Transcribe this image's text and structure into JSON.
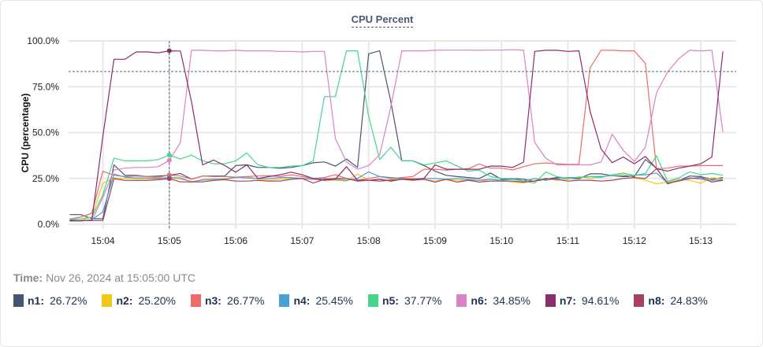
{
  "chart_data": {
    "type": "line",
    "title": "CPU Percent",
    "xlabel": "",
    "ylabel": "CPU (percentage)",
    "ylim": [
      0,
      100
    ],
    "y_ticks": [
      "0.0%",
      "25.0%",
      "50.0%",
      "75.0%",
      "100.0%"
    ],
    "y_tick_values": [
      0,
      25,
      50,
      75,
      100
    ],
    "x_range": [
      "15:03:29",
      "15:13:32"
    ],
    "x_ticks": [
      "15:04",
      "15:05",
      "15:06",
      "15:07",
      "15:08",
      "15:09",
      "15:10",
      "15:11",
      "15:12",
      "15:13"
    ],
    "grid": true,
    "reference_line": {
      "value": 83.3,
      "style": "dashed",
      "color": "#4f6b80"
    },
    "crosshair_time": "15:05:00",
    "x": [
      "15:03:30",
      "15:03:40",
      "15:03:50",
      "15:04:00",
      "15:04:10",
      "15:04:20",
      "15:04:30",
      "15:04:40",
      "15:04:50",
      "15:05:00",
      "15:05:10",
      "15:05:20",
      "15:05:30",
      "15:05:40",
      "15:05:50",
      "15:06:00",
      "15:06:10",
      "15:06:20",
      "15:06:30",
      "15:06:40",
      "15:06:50",
      "15:07:00",
      "15:07:10",
      "15:07:20",
      "15:07:30",
      "15:07:40",
      "15:07:50",
      "15:08:00",
      "15:08:10",
      "15:08:20",
      "15:08:30",
      "15:08:40",
      "15:08:50",
      "15:09:00",
      "15:09:10",
      "15:09:20",
      "15:09:30",
      "15:09:40",
      "15:09:50",
      "15:10:00",
      "15:10:10",
      "15:10:20",
      "15:10:30",
      "15:10:40",
      "15:10:50",
      "15:11:00",
      "15:11:10",
      "15:11:20",
      "15:11:30",
      "15:11:40",
      "15:11:50",
      "15:12:00",
      "15:12:10",
      "15:12:20",
      "15:12:30",
      "15:12:40",
      "15:12:50",
      "15:13:00",
      "15:13:10",
      "15:13:20"
    ],
    "series": [
      {
        "name": "n1",
        "color": "#46566f",
        "values": [
          5.3,
          5.3,
          3,
          3,
          32.4,
          26.7,
          26.7,
          26,
          26.3,
          26.72,
          27.7,
          24.6,
          26.3,
          26.3,
          26.3,
          32,
          32.4,
          31,
          31,
          30.5,
          31,
          32,
          33.5,
          34,
          31.7,
          35.6,
          31,
          93,
          94.6,
          67,
          34.6,
          34.6,
          32,
          29,
          26.7,
          26,
          25.5,
          25,
          28,
          24.5,
          25,
          24.5,
          23.5,
          24.5,
          25.5,
          25,
          24.8,
          27.5,
          27.5,
          26.5,
          26,
          26,
          35.3,
          30.6,
          22,
          23.9,
          26.3,
          26,
          24.5,
          25.5
        ]
      },
      {
        "name": "n2",
        "color": "#f5c518",
        "values": [
          2,
          2,
          3.9,
          22.4,
          25.3,
          24.9,
          24.6,
          24.6,
          24.6,
          25.2,
          24.6,
          23.4,
          23.9,
          24.3,
          24.9,
          25.3,
          26,
          24.6,
          24,
          24.5,
          25,
          25,
          24.5,
          24,
          24,
          23.5,
          27.4,
          24,
          23.5,
          24.5,
          25,
          25,
          24.5,
          23.5,
          24.5,
          24,
          24,
          24,
          23.5,
          24,
          23,
          22.5,
          24,
          25,
          24,
          24.5,
          26,
          25,
          26,
          26.5,
          27.4,
          25.3,
          24,
          22,
          23,
          24.6,
          24,
          22.4,
          25.5,
          24.6
        ]
      },
      {
        "name": "n3",
        "color": "#ef6b6b",
        "values": [
          2.9,
          3.9,
          6,
          28.9,
          26.7,
          26,
          26.3,
          26,
          25.7,
          26.77,
          26.3,
          24.6,
          26.3,
          26,
          26,
          25.7,
          26,
          26.3,
          26.5,
          26,
          27,
          26,
          25,
          25.5,
          27,
          25,
          24,
          25,
          26,
          25,
          25.5,
          26,
          30,
          30,
          29.5,
          30,
          30.3,
          32.9,
          30.6,
          30.6,
          29.6,
          31.4,
          33,
          33.4,
          33,
          32.7,
          32.7,
          85.3,
          94.9,
          94.9,
          94.6,
          94.6,
          87.7,
          30.3,
          30.6,
          31.7,
          31.7,
          32,
          32,
          32
        ]
      },
      {
        "name": "n4",
        "color": "#4a9fd6",
        "values": [
          1.7,
          1.7,
          2.4,
          6.7,
          27.4,
          25.7,
          25.3,
          25.3,
          25.1,
          25.45,
          25.3,
          23,
          24.3,
          24.6,
          24.6,
          25.7,
          25.3,
          24.9,
          25,
          25.5,
          25.5,
          25,
          24.5,
          25,
          24.5,
          24,
          25,
          28.6,
          26,
          25.5,
          25,
          24.5,
          25,
          25,
          24.5,
          25,
          24.5,
          24,
          24.5,
          24,
          24.5,
          23.5,
          25,
          24,
          25,
          25.5,
          25.5,
          26,
          26,
          26.5,
          26.5,
          26.7,
          27,
          28,
          22.4,
          23.9,
          25.3,
          24.6,
          23.9,
          24.3
        ]
      },
      {
        "name": "n5",
        "color": "#45d68d",
        "values": [
          2.9,
          2.9,
          3.9,
          16,
          36,
          34.6,
          34.6,
          34.6,
          35.3,
          37.77,
          35.6,
          37.7,
          34.6,
          33,
          33,
          34.6,
          38.9,
          32.4,
          31,
          31,
          31.7,
          32,
          34.5,
          69.6,
          69.6,
          94.6,
          94.6,
          58.9,
          35.3,
          42,
          34.6,
          34.6,
          32.4,
          33.4,
          34.6,
          31.7,
          29,
          29.5,
          26,
          25,
          25,
          23.5,
          22.5,
          28.5,
          26,
          25,
          25.5,
          26,
          25.5,
          27,
          28,
          26.7,
          27.7,
          37.4,
          23.4,
          25.3,
          28.6,
          27,
          27.7,
          26.7
        ]
      },
      {
        "name": "n6",
        "color": "#d982c4",
        "values": [
          2,
          2,
          2,
          14.6,
          29.6,
          30.6,
          31,
          31,
          31.4,
          34.85,
          44.6,
          94.9,
          94.9,
          94.6,
          94.6,
          94.9,
          94.6,
          94.6,
          94.6,
          94.3,
          94.3,
          94,
          94.3,
          94.3,
          46.7,
          34,
          30,
          32,
          38,
          64,
          94.6,
          94.6,
          94.6,
          94.9,
          95,
          95,
          95,
          94.9,
          95,
          95,
          95.2,
          94.9,
          44.6,
          36,
          32.4,
          32.4,
          32.4,
          32.4,
          34,
          49.1,
          40.3,
          34.3,
          42,
          71.7,
          83,
          90.3,
          94.9,
          94.6,
          94.9,
          50.3
        ]
      },
      {
        "name": "n7",
        "color": "#8a2d6b",
        "values": [
          2,
          2,
          2,
          48,
          90,
          90,
          94,
          94,
          93.5,
          94.61,
          94.5,
          67,
          32.4,
          35,
          32,
          28.4,
          32.4,
          25,
          26,
          27,
          28.4,
          27,
          25,
          24,
          24.6,
          31.4,
          24,
          24,
          24.5,
          23.5,
          24.6,
          24.6,
          25,
          32.4,
          30,
          30,
          30,
          30,
          31.7,
          31.7,
          31,
          33.9,
          94.3,
          94.9,
          94.9,
          94.3,
          94.6,
          61.7,
          41,
          33.6,
          36.7,
          33,
          37,
          30.3,
          29,
          30.6,
          31.7,
          33,
          36.7,
          94.3
        ]
      },
      {
        "name": "n8",
        "color": "#a8405f",
        "values": [
          2.4,
          2,
          2,
          2,
          24.9,
          23.9,
          23.9,
          23.9,
          24.3,
          24.83,
          23.1,
          23.1,
          23.1,
          23.9,
          24.3,
          23.5,
          23.5,
          23.9,
          23.5,
          23.5,
          24.5,
          25,
          22.5,
          24.5,
          25,
          25,
          23.5,
          24,
          23.5,
          24,
          24.5,
          24,
          24.5,
          23,
          24.5,
          23,
          24,
          23,
          23.5,
          23.5,
          23.5,
          23,
          23.5,
          25,
          24.5,
          23.5,
          24,
          24,
          23.5,
          24,
          25,
          25.5,
          25,
          30.3,
          22.4,
          23.5,
          25,
          25.5,
          23,
          24
        ]
      }
    ]
  },
  "tooltip": {
    "time_label": "Time:",
    "time_value": "Nov 26, 2024 at 15:05:00 UTC",
    "items": [
      {
        "label": "n1:",
        "value": "26.72%",
        "color": "#46566f"
      },
      {
        "label": "n2:",
        "value": "25.20%",
        "color": "#f5c518"
      },
      {
        "label": "n3:",
        "value": "26.77%",
        "color": "#ef6b6b"
      },
      {
        "label": "n4:",
        "value": "25.45%",
        "color": "#4a9fd6"
      },
      {
        "label": "n5:",
        "value": "37.77%",
        "color": "#45d68d"
      },
      {
        "label": "n6:",
        "value": "34.85%",
        "color": "#d982c4"
      },
      {
        "label": "n7:",
        "value": "94.61%",
        "color": "#8a2d6b"
      },
      {
        "label": "n8:",
        "value": "24.83%",
        "color": "#a8405f"
      }
    ]
  }
}
